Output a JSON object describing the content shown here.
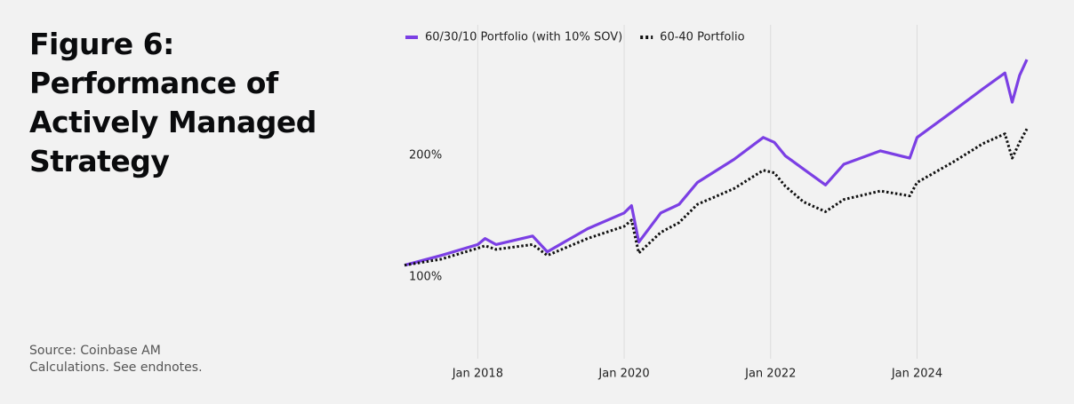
{
  "chart_data": {
    "type": "line",
    "title": [
      "Figure 6:",
      "Performance of",
      "Actively Managed",
      "Strategy"
    ],
    "source": [
      "Source: Coinbase AM",
      "Calculations. See endnotes."
    ],
    "x": [
      2017.0,
      2017.5,
      2018.0,
      2018.1,
      2018.25,
      2018.75,
      2018.95,
      2019.5,
      2020.0,
      2020.1,
      2020.2,
      2020.5,
      2020.75,
      2021.0,
      2021.5,
      2021.9,
      2022.05,
      2022.2,
      2022.45,
      2022.75,
      2023.0,
      2023.5,
      2023.9,
      2024.0,
      2024.5,
      2024.9,
      2025.2,
      2025.3,
      2025.4,
      2025.5
    ],
    "series": [
      {
        "name": "60/30/10 Portfolio (with 10% SOV)",
        "color": "#7b3fe4",
        "style": "solid",
        "values": [
          101,
          109,
          118,
          123,
          118,
          125,
          112,
          131,
          144,
          150,
          120,
          144,
          151,
          169,
          188,
          206,
          202,
          191,
          180,
          167,
          184,
          195,
          189,
          206,
          228,
          246,
          259,
          235,
          257,
          270
        ]
      },
      {
        "name": "60-40 Portfolio",
        "color": "#111111",
        "style": "dotted",
        "values": [
          101,
          106,
          115,
          117,
          114,
          118,
          109,
          123,
          133,
          138,
          111,
          128,
          136,
          151,
          164,
          179,
          177,
          166,
          153,
          145,
          155,
          162,
          158,
          169,
          186,
          201,
          209,
          189,
          202,
          213
        ]
      }
    ],
    "xlim": [
      2017.0,
      2025.5
    ],
    "xticks": [
      {
        "value": 2018,
        "label": "Jan 2018"
      },
      {
        "value": 2020,
        "label": "Jan 2020"
      },
      {
        "value": 2022,
        "label": "Jan 2022"
      },
      {
        "value": 2024,
        "label": "Jan 2024"
      }
    ],
    "ylim": [
      30,
      300
    ],
    "yticks": [
      {
        "value": 100,
        "label": "100%"
      },
      {
        "value": 200,
        "label": "200%"
      }
    ],
    "grid": true,
    "legend": "top"
  }
}
